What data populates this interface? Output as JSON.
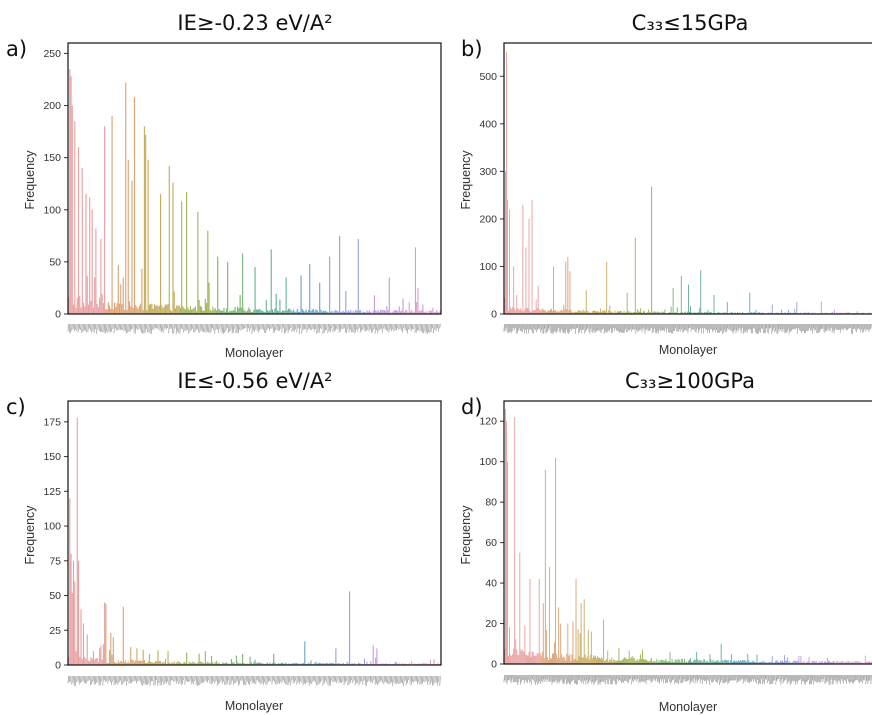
{
  "chart_data": [
    {
      "id": "a",
      "panel_label": "a)",
      "type": "bar",
      "title": "IE≥-0.23 eV/A²",
      "xlabel": "Monolayer",
      "ylabel": "Frequency",
      "ylim": [
        0,
        260
      ],
      "yticks": [
        0,
        50,
        100,
        150,
        200,
        250
      ],
      "n_bars": 300,
      "baseline": 6,
      "palette": [
        "#e8a0a0",
        "#dca476",
        "#c6ac5e",
        "#a2b45a",
        "#7cb670",
        "#66b09a",
        "#6aa6c4",
        "#96a2de",
        "#c69ce0",
        "#dca0cc"
      ],
      "peaks": [
        [
          1,
          235
        ],
        [
          2,
          228
        ],
        [
          3,
          200
        ],
        [
          5,
          185
        ],
        [
          8,
          160
        ],
        [
          11,
          140
        ],
        [
          14,
          115
        ],
        [
          17,
          112
        ],
        [
          19,
          100
        ],
        [
          22,
          82
        ],
        [
          26,
          72
        ],
        [
          29,
          180
        ],
        [
          35,
          190
        ],
        [
          46,
          222
        ],
        [
          48,
          148
        ],
        [
          51,
          128
        ],
        [
          53,
          208
        ],
        [
          61,
          180
        ],
        [
          62,
          172
        ],
        [
          64,
          148
        ],
        [
          74,
          115
        ],
        [
          81,
          142
        ],
        [
          84,
          126
        ],
        [
          91,
          108
        ],
        [
          95,
          117
        ],
        [
          104,
          98
        ],
        [
          112,
          80
        ],
        [
          120,
          55
        ],
        [
          128,
          50
        ],
        [
          140,
          58
        ],
        [
          150,
          45
        ],
        [
          163,
          62
        ],
        [
          175,
          35
        ],
        [
          187,
          37
        ],
        [
          194,
          48
        ],
        [
          202,
          30
        ],
        [
          210,
          55
        ],
        [
          218,
          75
        ],
        [
          223,
          22
        ],
        [
          233,
          72
        ],
        [
          246,
          18
        ],
        [
          258,
          35
        ],
        [
          269,
          15
        ],
        [
          279,
          64
        ],
        [
          281,
          25
        ]
      ],
      "grid": false,
      "legend": "none"
    },
    {
      "id": "b",
      "panel_label": "b)",
      "type": "bar",
      "title": "C₃₃≤15GPa",
      "xlabel": "Monolayer",
      "ylabel": "Frequency",
      "ylim": [
        0,
        570
      ],
      "yticks": [
        0,
        100,
        200,
        300,
        400,
        500
      ],
      "n_bars": 360,
      "baseline": 5,
      "palette": [
        "#e8a0a0",
        "#dca476",
        "#c6ac5e",
        "#a2b45a",
        "#7cb670",
        "#66b09a",
        "#6aa6c4",
        "#96a2de",
        "#c69ce0",
        "#dca0cc"
      ],
      "peaks": [
        [
          1,
          300
        ],
        [
          2,
          552
        ],
        [
          3,
          240
        ],
        [
          5,
          220
        ],
        [
          9,
          100
        ],
        [
          12,
          40
        ],
        [
          18,
          230
        ],
        [
          21,
          140
        ],
        [
          24,
          200
        ],
        [
          27,
          240
        ],
        [
          33,
          60
        ],
        [
          48,
          100
        ],
        [
          60,
          110
        ],
        [
          62,
          120
        ],
        [
          64,
          90
        ],
        [
          80,
          50
        ],
        [
          100,
          110
        ],
        [
          120,
          45
        ],
        [
          128,
          160
        ],
        [
          144,
          268
        ],
        [
          165,
          55
        ],
        [
          173,
          80
        ],
        [
          180,
          62
        ],
        [
          192,
          92
        ],
        [
          205,
          40
        ],
        [
          218,
          25
        ],
        [
          240,
          45
        ],
        [
          262,
          20
        ],
        [
          286,
          25
        ],
        [
          310,
          26
        ]
      ],
      "grid": false,
      "legend": "none"
    },
    {
      "id": "c",
      "panel_label": "c)",
      "type": "bar",
      "title": "IE≤-0.56 eV/A²",
      "xlabel": "Monolayer",
      "ylabel": "Frequency",
      "ylim": [
        0,
        190
      ],
      "yticks": [
        0,
        25,
        50,
        75,
        100,
        125,
        150,
        175
      ],
      "n_bars": 300,
      "baseline": 2,
      "palette": [
        "#e8a0a0",
        "#dca476",
        "#c6ac5e",
        "#a2b45a",
        "#7cb670",
        "#66b09a",
        "#6aa6c4",
        "#96a2de",
        "#c69ce0",
        "#dca0cc"
      ],
      "peaks": [
        [
          1,
          120
        ],
        [
          2,
          80
        ],
        [
          3,
          52
        ],
        [
          4,
          75
        ],
        [
          5,
          60
        ],
        [
          7,
          178
        ],
        [
          8,
          75
        ],
        [
          10,
          40
        ],
        [
          12,
          30
        ],
        [
          15,
          22
        ],
        [
          20,
          10
        ],
        [
          25,
          12
        ],
        [
          28,
          15
        ],
        [
          29,
          45
        ],
        [
          30,
          44
        ],
        [
          34,
          23
        ],
        [
          36,
          20
        ],
        [
          44,
          42
        ],
        [
          50,
          13
        ],
        [
          55,
          12
        ],
        [
          60,
          11
        ],
        [
          65,
          8
        ],
        [
          80,
          10
        ],
        [
          95,
          9
        ],
        [
          110,
          10
        ],
        [
          140,
          8
        ],
        [
          165,
          8
        ],
        [
          190,
          17
        ],
        [
          215,
          12
        ],
        [
          226,
          53
        ],
        [
          245,
          14
        ],
        [
          248,
          12
        ]
      ],
      "grid": false,
      "legend": "none"
    },
    {
      "id": "d",
      "panel_label": "d)",
      "type": "bar",
      "title": "C₃₃≥100GPa",
      "xlabel": "Monolayer",
      "ylabel": "Frequency",
      "ylim": [
        0,
        130
      ],
      "yticks": [
        0,
        20,
        40,
        60,
        80,
        100,
        120
      ],
      "n_bars": 360,
      "baseline": 2.5,
      "palette": [
        "#e8a0a0",
        "#dca476",
        "#c6ac5e",
        "#a2b45a",
        "#7cb670",
        "#66b09a",
        "#6aa6c4",
        "#96a2de",
        "#c69ce0",
        "#dca0cc"
      ],
      "peaks": [
        [
          1,
          126
        ],
        [
          2,
          120
        ],
        [
          3,
          100
        ],
        [
          10,
          122
        ],
        [
          15,
          55
        ],
        [
          25,
          42
        ],
        [
          34,
          42
        ],
        [
          38,
          30
        ],
        [
          40,
          96
        ],
        [
          44,
          48
        ],
        [
          50,
          102
        ],
        [
          53,
          28
        ],
        [
          55,
          20
        ],
        [
          62,
          20
        ],
        [
          67,
          21
        ],
        [
          70,
          42
        ],
        [
          75,
          30
        ],
        [
          78,
          32
        ],
        [
          82,
          17
        ],
        [
          85,
          16
        ],
        [
          97,
          22
        ],
        [
          112,
          8
        ],
        [
          135,
          7
        ],
        [
          162,
          6
        ],
        [
          188,
          6
        ],
        [
          212,
          10
        ],
        [
          238,
          5
        ],
        [
          262,
          4
        ],
        [
          288,
          4
        ],
        [
          316,
          3
        ]
      ],
      "grid": false,
      "legend": "none"
    }
  ]
}
